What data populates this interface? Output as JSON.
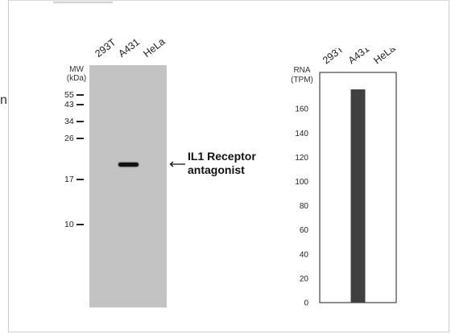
{
  "edge_glyph": "n",
  "western_blot": {
    "lanes": [
      "293T",
      "A431",
      "HeLa"
    ],
    "mw_header": [
      "MW",
      "(kDa)"
    ],
    "mw_markers": [
      {
        "label": "55",
        "kda": 55
      },
      {
        "label": "43",
        "kda": 43
      },
      {
        "label": "34",
        "kda": 34
      },
      {
        "label": "26",
        "kda": 26
      },
      {
        "label": "17",
        "kda": 17
      },
      {
        "label": "10",
        "kda": 10
      }
    ],
    "band_lane": "A431",
    "target_label_lines": [
      "IL1 Receptor",
      "antagonist"
    ]
  },
  "chart_data": {
    "type": "bar",
    "categories": [
      "293T",
      "A431",
      "HeLa"
    ],
    "values": [
      0,
      176,
      0
    ],
    "ylabel_lines": [
      "RNA",
      "(TPM)"
    ],
    "ylim": [
      0,
      190
    ],
    "yticks": [
      0,
      20,
      40,
      60,
      80,
      100,
      120,
      140,
      160
    ],
    "bar_color": "#404040",
    "grid": false,
    "legend": "none"
  }
}
